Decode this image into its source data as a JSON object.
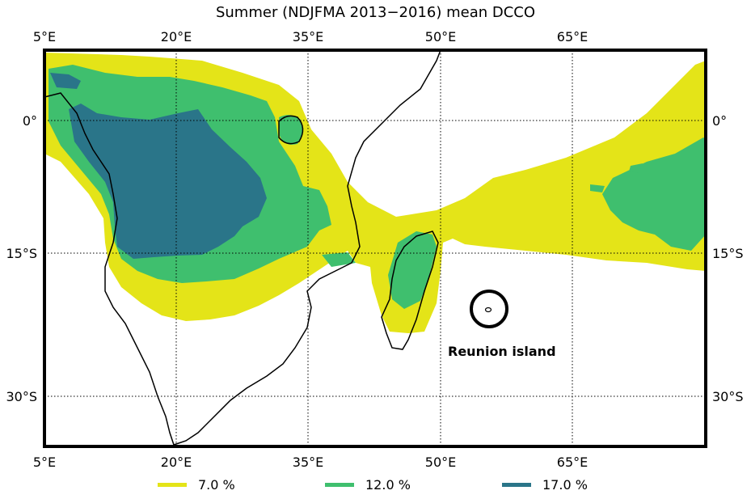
{
  "title": "Summer (NDJFMA 2013−2016) mean DCCO",
  "colors": {
    "level_7": "#e4e418",
    "level_12": "#3fbf6e",
    "level_17": "#2a7589",
    "coast": "#000000",
    "frame": "#000000"
  },
  "axes": {
    "lon_top": [
      "5°E",
      "20°E",
      "35°E",
      "50°E",
      "65°E"
    ],
    "lon_bottom": [
      "5°E",
      "20°E",
      "35°E",
      "50°E",
      "65°E"
    ],
    "lat_left": [
      "0°",
      "15°S",
      "30°S"
    ],
    "lat_right": [
      "0°",
      "15°S",
      "30°S"
    ]
  },
  "annotation": {
    "label": "Reunion island",
    "marker": "circle"
  },
  "legend": [
    {
      "label": "7.0 %",
      "color": "#e4e418"
    },
    {
      "label": "12.0 %",
      "color": "#3fbf6e"
    },
    {
      "label": "17.0 %",
      "color": "#2a7589"
    }
  ]
}
